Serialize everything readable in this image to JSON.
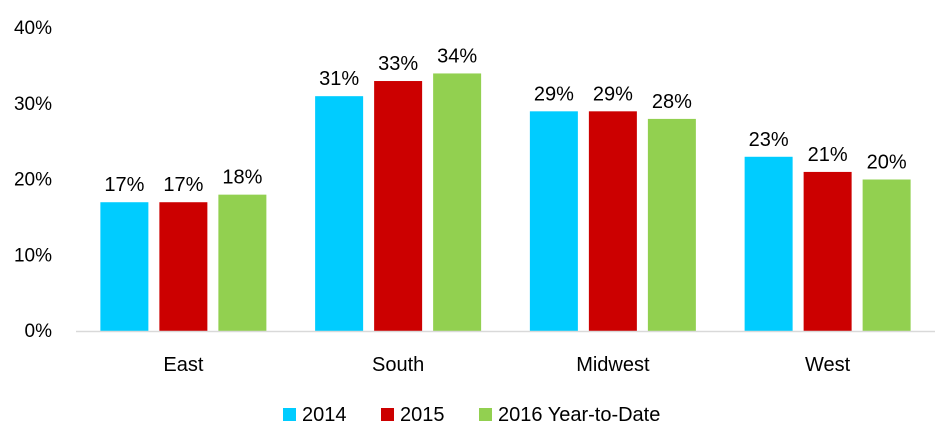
{
  "chart_data": {
    "type": "bar",
    "categories": [
      "East",
      "South",
      "Midwest",
      "West"
    ],
    "series": [
      {
        "name": "2014",
        "color": "#00CCFF",
        "values": [
          17,
          31,
          29,
          23
        ],
        "labels": [
          "17%",
          "31%",
          "29%",
          "23%"
        ]
      },
      {
        "name": "2015",
        "color": "#CC0000",
        "values": [
          17,
          33,
          29,
          21
        ],
        "labels": [
          "17%",
          "33%",
          "29%",
          "21%"
        ]
      },
      {
        "name": "2016 Year-to-Date",
        "color": "#92D050",
        "values": [
          18,
          34,
          28,
          20
        ],
        "labels": [
          "18%",
          "34%",
          "28%",
          "20%"
        ]
      }
    ],
    "ylim": [
      0,
      40
    ],
    "yticks": [
      0,
      10,
      20,
      30,
      40
    ],
    "ytick_labels": [
      "0%",
      "10%",
      "20%",
      "30%",
      "40%"
    ],
    "grid": false,
    "legend_position": "bottom",
    "axis_color": "#D9D9D9"
  }
}
